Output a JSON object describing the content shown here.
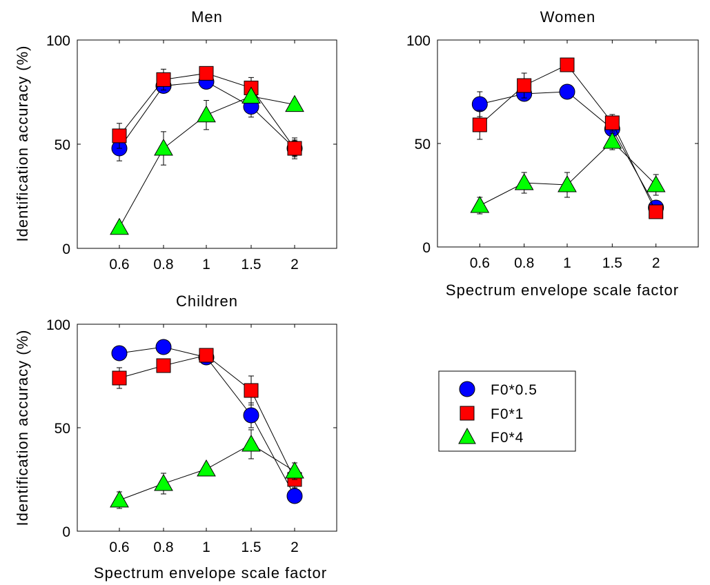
{
  "figure": {
    "legend": {
      "placement": "right",
      "entries": [
        {
          "label": "F0*0.5",
          "marker": "circle",
          "color": "#0000ff"
        },
        {
          "label": "F0*1",
          "marker": "square",
          "color": "#ff0000"
        },
        {
          "label": "F0*4",
          "marker": "triangle",
          "color": "#00ff00"
        }
      ]
    },
    "ylabel": "Identification accuracy (%)",
    "xlabel": "Spectrum envelope scale factor"
  },
  "chart_data": [
    {
      "type": "line",
      "title": "Men",
      "ylabel": "Identification accuracy (%)",
      "xlabel": "",
      "ylim": [
        0,
        100
      ],
      "yticks": [
        0,
        50,
        100
      ],
      "categories": [
        "0.6",
        "0.8",
        "1",
        "1.5",
        "2"
      ],
      "series": [
        {
          "name": "F0*0.5",
          "values": [
            48,
            78,
            80,
            68,
            48
          ],
          "errors": [
            6,
            3,
            3,
            5,
            5
          ]
        },
        {
          "name": "F0*1",
          "values": [
            54,
            81,
            84,
            77,
            48
          ],
          "errors": [
            6,
            5,
            2,
            5,
            4
          ]
        },
        {
          "name": "F0*4",
          "values": [
            10,
            48,
            64,
            73,
            69
          ],
          "errors": [
            0,
            8,
            7,
            0,
            2
          ]
        }
      ]
    },
    {
      "type": "line",
      "title": "Women",
      "ylabel": "",
      "xlabel": "Spectrum envelope scale factor",
      "ylim": [
        0,
        100
      ],
      "yticks": [
        0,
        50,
        100
      ],
      "categories": [
        "0.6",
        "0.8",
        "1",
        "1.5",
        "2"
      ],
      "series": [
        {
          "name": "F0*0.5",
          "values": [
            69,
            74,
            75,
            57,
            19
          ],
          "errors": [
            6,
            3,
            3,
            4,
            3
          ]
        },
        {
          "name": "F0*1",
          "values": [
            59,
            78,
            88,
            60,
            17
          ],
          "errors": [
            7,
            6,
            2,
            4,
            2
          ]
        },
        {
          "name": "F0*4",
          "values": [
            20,
            31,
            30,
            51,
            30
          ],
          "errors": [
            4,
            5,
            6,
            4,
            5
          ]
        }
      ]
    },
    {
      "type": "line",
      "title": "Children",
      "ylabel": "Identification accuracy (%)",
      "xlabel": "Spectrum envelope scale factor",
      "ylim": [
        0,
        100
      ],
      "yticks": [
        0,
        50,
        100
      ],
      "categories": [
        "0.6",
        "0.8",
        "1",
        "1.5",
        "2"
      ],
      "series": [
        {
          "name": "F0*0.5",
          "values": [
            86,
            89,
            84,
            56,
            17
          ],
          "errors": [
            3,
            2,
            2,
            6,
            2
          ]
        },
        {
          "name": "F0*1",
          "values": [
            74,
            80,
            85,
            68,
            25
          ],
          "errors": [
            5,
            3,
            2,
            7,
            4
          ]
        },
        {
          "name": "F0*4",
          "values": [
            15,
            23,
            30,
            42,
            29
          ],
          "errors": [
            4,
            5,
            2,
            7,
            4
          ]
        }
      ]
    }
  ]
}
